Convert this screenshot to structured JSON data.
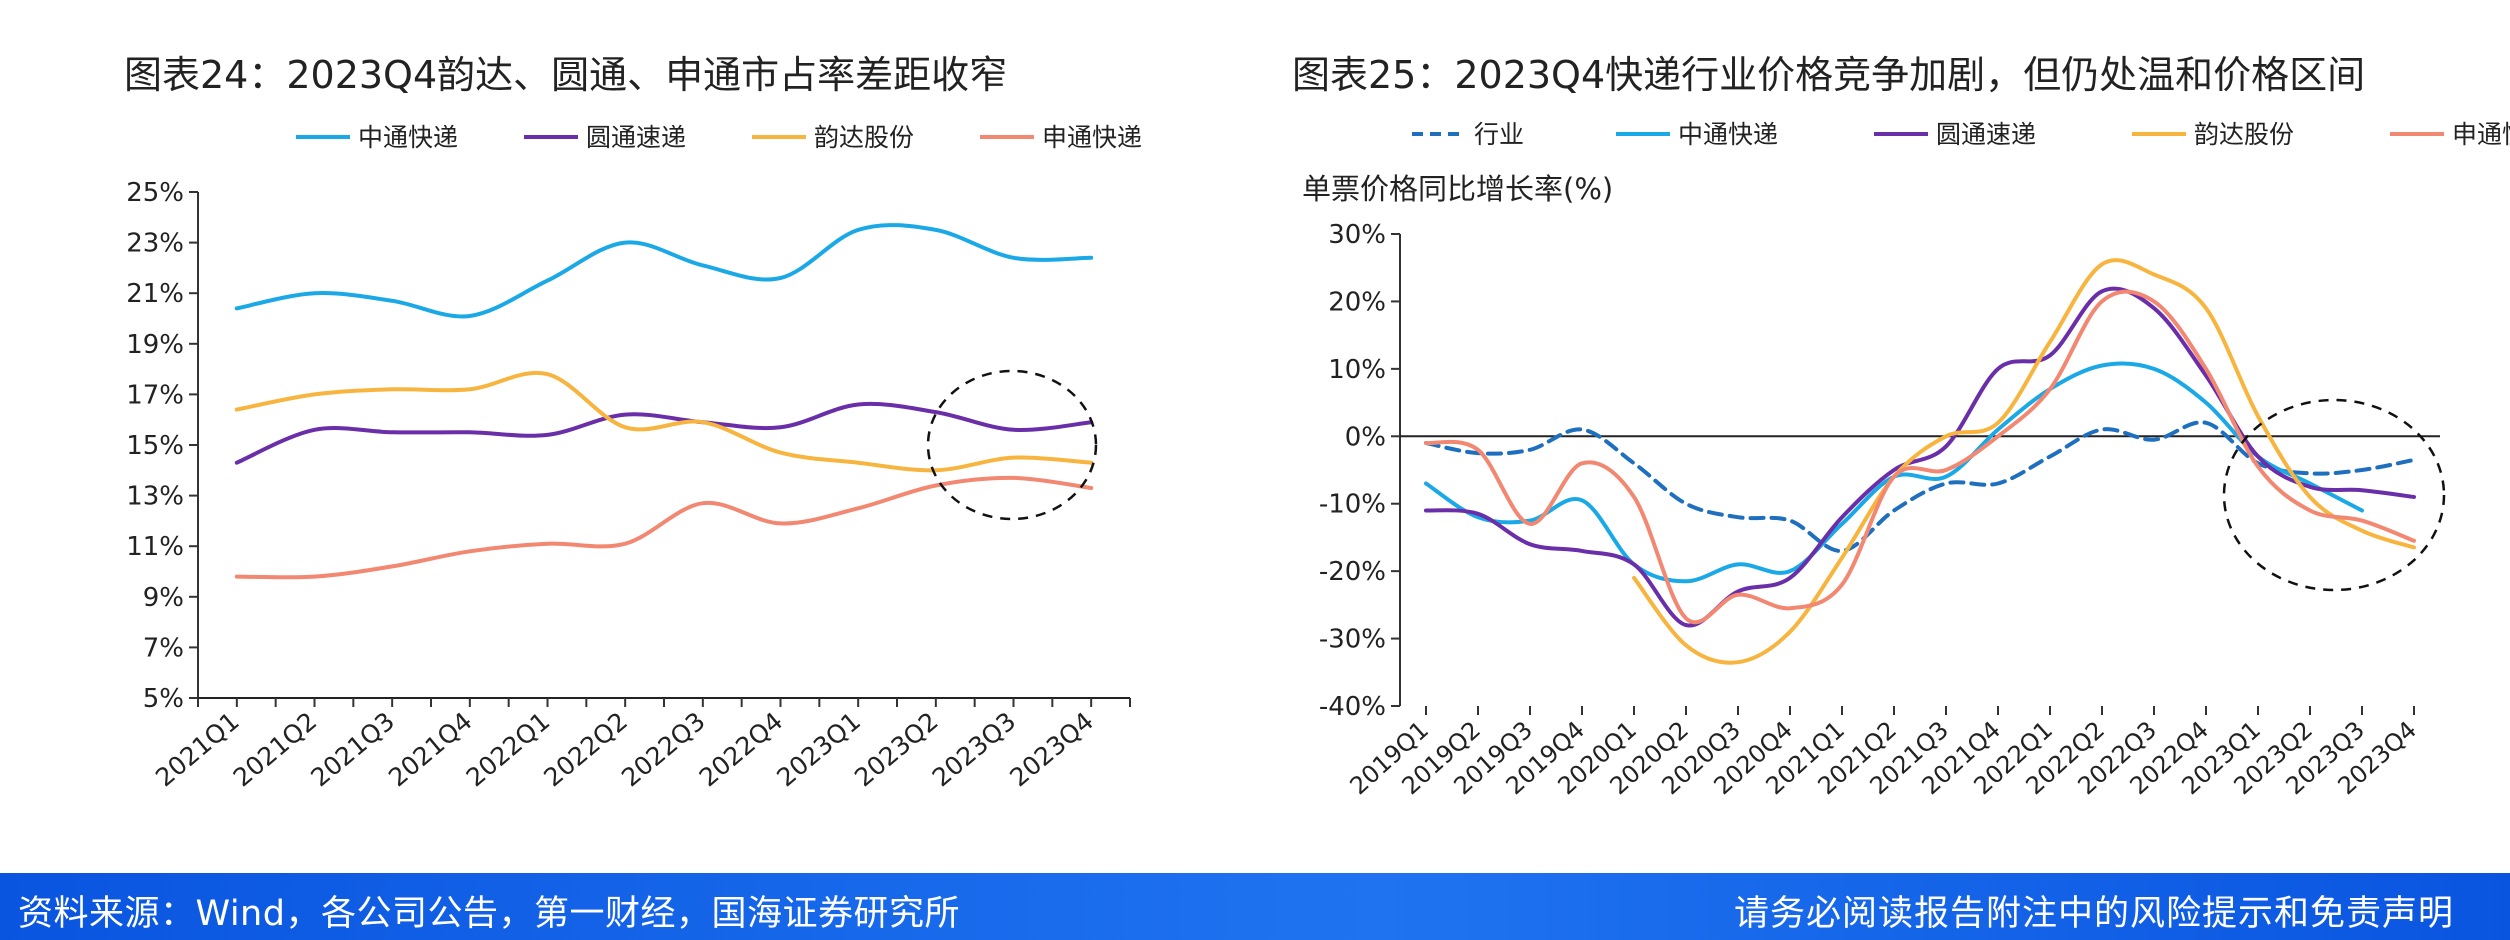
{
  "footer": {
    "source": "资料来源：Wind，各公司公告，第一财经，国海证券研究所",
    "disclaimer": "请务必阅读报告附注中的风险提示和免责声明"
  },
  "colors": {
    "sto": "#1aa9e6",
    "yto": "#6a2ea8",
    "yunda": "#f7b540",
    "sto2": "#f28872",
    "industry": "#1f6fbf",
    "axis": "#333333",
    "text": "#222222"
  },
  "chart_data": [
    {
      "type": "line",
      "title": "图表24：2023Q4韵达、圆通、申通市占率差距收窄",
      "xlabel": "",
      "ylabel": "",
      "categories": [
        "2021Q1",
        "2021Q2",
        "2021Q3",
        "2021Q4",
        "2022Q1",
        "2022Q2",
        "2022Q3",
        "2022Q4",
        "2023Q1",
        "2023Q2",
        "2023Q3",
        "2023Q4"
      ],
      "y_ticks": [
        "5%",
        "7%",
        "9%",
        "11%",
        "13%",
        "15%",
        "17%",
        "19%",
        "21%",
        "23%",
        "25%"
      ],
      "ylim": [
        5,
        25
      ],
      "legend_position": "top-center",
      "series": [
        {
          "name": "中通快递",
          "color": "#1aa9e6",
          "dash": false,
          "values": [
            20.4,
            21.0,
            20.7,
            20.1,
            21.5,
            23.0,
            22.1,
            21.6,
            23.5,
            23.5,
            22.4,
            22.4
          ]
        },
        {
          "name": "圆通速递",
          "color": "#6a2ea8",
          "dash": false,
          "values": [
            14.3,
            15.6,
            15.5,
            15.5,
            15.4,
            16.2,
            15.9,
            15.7,
            16.6,
            16.3,
            15.6,
            15.9
          ]
        },
        {
          "name": "韵达股份",
          "color": "#f7b540",
          "dash": false,
          "values": [
            16.4,
            17.0,
            17.2,
            17.2,
            17.8,
            15.7,
            15.9,
            14.7,
            14.3,
            14.0,
            14.5,
            14.3
          ]
        },
        {
          "name": "申通快递",
          "color": "#f28872",
          "dash": false,
          "values": [
            9.8,
            9.8,
            10.2,
            10.8,
            11.1,
            11.1,
            12.7,
            11.9,
            12.5,
            13.4,
            13.7,
            13.3
          ]
        }
      ],
      "annotation": "dashed-circle-2023Q3"
    },
    {
      "type": "line",
      "title": "图表25：2023Q4快递行业价格竞争加剧，但仍处温和价格区间",
      "xlabel": "",
      "ylabel": "单票价格同比增长率(%)",
      "categories": [
        "2019Q1",
        "2019Q2",
        "2019Q3",
        "2019Q4",
        "2020Q1",
        "2020Q2",
        "2020Q3",
        "2020Q4",
        "2021Q1",
        "2021Q2",
        "2021Q3",
        "2021Q4",
        "2022Q1",
        "2022Q2",
        "2022Q3",
        "2022Q4",
        "2023Q1",
        "2023Q2",
        "2023Q3",
        "2023Q4"
      ],
      "y_ticks": [
        "-40%",
        "-30%",
        "-20%",
        "-10%",
        "0%",
        "10%",
        "20%",
        "30%"
      ],
      "ylim": [
        -40,
        30
      ],
      "legend_position": "top-center",
      "series": [
        {
          "name": "行业",
          "color": "#1f6fbf",
          "dash": true,
          "values": [
            -1,
            -2.5,
            -2,
            1,
            -4,
            -10,
            -12,
            -12.5,
            -17,
            -11,
            -7,
            -7,
            -3,
            1,
            -0.5,
            2,
            -4,
            -5.5,
            -5,
            -3.5
          ]
        },
        {
          "name": "中通快递",
          "color": "#1aa9e6",
          "dash": false,
          "values": [
            -7,
            -12,
            -12.5,
            -9.5,
            -19,
            -21.5,
            -19,
            -20,
            -13,
            -6,
            -6,
            1,
            7,
            10.5,
            10,
            5,
            -3,
            -7,
            -11,
            null
          ]
        },
        {
          "name": "圆通速递",
          "color": "#6a2ea8",
          "dash": false,
          "values": [
            -11,
            -11.5,
            -16,
            -17,
            -19,
            -28,
            -23,
            -21,
            -12,
            -5,
            -1.5,
            10,
            12,
            21.5,
            19,
            9,
            -3,
            -7.5,
            -8,
            -9
          ]
        },
        {
          "name": "韵达股份",
          "color": "#f7b540",
          "dash": false,
          "values": [
            null,
            null,
            null,
            null,
            -21,
            -31,
            -33.5,
            -29,
            -18,
            -6,
            0,
            2,
            14,
            25.5,
            24,
            19,
            3,
            -9,
            -14,
            -16.5
          ]
        },
        {
          "name": "申通快递",
          "color": "#f28872",
          "dash": false,
          "values": [
            -1,
            -2,
            -13,
            -4,
            -9,
            -27,
            -23.5,
            -25.5,
            -22,
            -6,
            -5,
            0,
            7,
            20,
            20,
            10,
            -4.5,
            -11,
            -12.5,
            -15.5
          ]
        }
      ],
      "annotation": "dashed-circle-2023Q2-Q4"
    }
  ]
}
